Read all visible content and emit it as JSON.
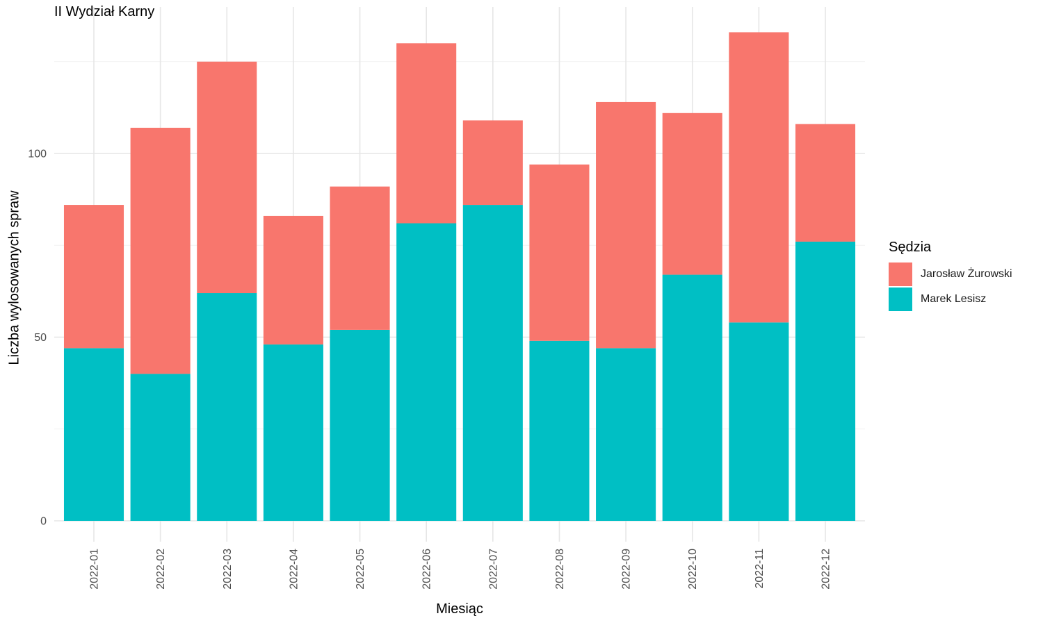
{
  "chart_data": {
    "type": "bar",
    "stacked": true,
    "title": "II Wydział Karny",
    "xlabel": "Miesiąc",
    "ylabel": "Liczba wylosowanych spraw",
    "ylim": [
      0,
      135
    ],
    "yticks": [
      0,
      50,
      100
    ],
    "grid": true,
    "legend_position": "right",
    "legend_title": "Sędzia",
    "categories": [
      "2022-01",
      "2022-02",
      "2022-03",
      "2022-04",
      "2022-05",
      "2022-06",
      "2022-07",
      "2022-08",
      "2022-09",
      "2022-10",
      "2022-11",
      "2022-12"
    ],
    "series": [
      {
        "name": "Marek Lesisz",
        "color": "#00BFC4",
        "values": [
          47,
          40,
          62,
          48,
          52,
          81,
          86,
          49,
          47,
          67,
          54,
          76
        ]
      },
      {
        "name": "Jarosław Żurowski",
        "color": "#F8766D",
        "values": [
          39,
          67,
          63,
          35,
          39,
          49,
          23,
          48,
          67,
          44,
          79,
          32
        ]
      }
    ]
  }
}
